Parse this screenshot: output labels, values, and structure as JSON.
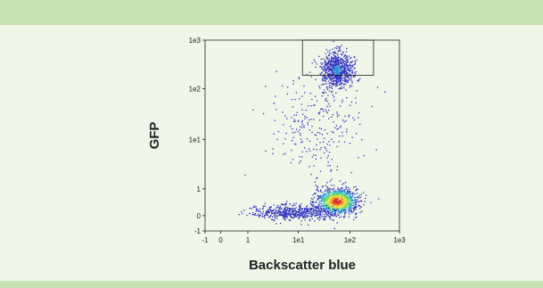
{
  "chart_data": {
    "type": "scatter",
    "xlabel": "Backscatter blue",
    "ylabel": "GFP",
    "x_scale": "biexponential",
    "y_scale": "biexponential",
    "xlim": [
      -1,
      1000
    ],
    "ylim": [
      -1,
      1000
    ],
    "x_ticks": [
      {
        "value": -1,
        "label": "-1"
      },
      {
        "value": 0,
        "label": "0"
      },
      {
        "value": 1,
        "label": "1"
      },
      {
        "value": 10,
        "label": "1e1"
      },
      {
        "value": 100,
        "label": "1e2"
      },
      {
        "value": 1000,
        "label": "1e3"
      }
    ],
    "y_ticks": [
      {
        "value": 1000,
        "label": "1e3"
      },
      {
        "value": 100,
        "label": "1e2"
      },
      {
        "value": 10,
        "label": "1e1"
      },
      {
        "value": 1,
        "label": "1"
      },
      {
        "value": 0,
        "label": "0"
      },
      {
        "value": -1,
        "label": "-1"
      }
    ],
    "gate": {
      "x": [
        12,
        300
      ],
      "y": [
        190,
        1000
      ]
    },
    "populations": [
      {
        "x_center": 55,
        "y_center": 0.55,
        "x_spread": 0.55,
        "y_spread": 0.35,
        "share": 0.4
      },
      {
        "x_center": 8,
        "y_center": 0.15,
        "x_spread": 1.1,
        "y_spread": 0.2,
        "share": 0.2
      },
      {
        "x_center": 55,
        "y_center": 250,
        "x_spread": 0.4,
        "y_spread": 0.45,
        "share": 0.3
      },
      {
        "x_center": 20,
        "y_center": 20,
        "x_spread": 1.2,
        "y_spread": 1.4,
        "share": 0.1
      }
    ],
    "density_colors": [
      "#3030c0",
      "#2a8bd4",
      "#2fc6a8",
      "#8fd83a",
      "#f1e23a",
      "#f29a2e",
      "#e0312a"
    ]
  }
}
